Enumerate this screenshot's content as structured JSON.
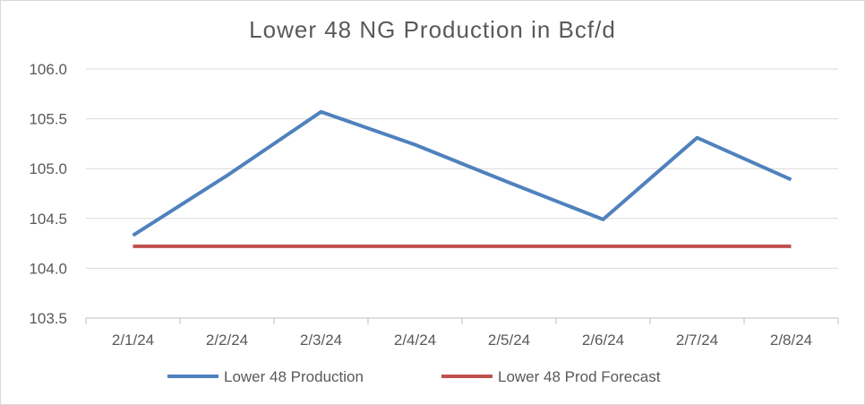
{
  "chart_data": {
    "type": "line",
    "title": "Lower 48 NG Production in Bcf/d",
    "xlabel": "",
    "ylabel": "",
    "categories": [
      "2/1/24",
      "2/2/24",
      "2/3/24",
      "2/4/24",
      "2/5/24",
      "2/6/24",
      "2/7/24",
      "2/8/24"
    ],
    "ylim": [
      103.5,
      106.0
    ],
    "yticks": [
      "103.5",
      "104.0",
      "104.5",
      "105.0",
      "105.5",
      "106.0"
    ],
    "grid": true,
    "legend_position": "bottom",
    "series": [
      {
        "name": "Lower 48 Production",
        "color": "#4f81bd",
        "values": [
          104.33,
          104.93,
          105.57,
          105.24,
          104.86,
          104.49,
          105.31,
          104.89
        ]
      },
      {
        "name": "Lower 48 Prod Forecast",
        "color": "#c0504d",
        "values": [
          104.22,
          104.22,
          104.22,
          104.22,
          104.22,
          104.22,
          104.22,
          104.22
        ]
      }
    ]
  }
}
